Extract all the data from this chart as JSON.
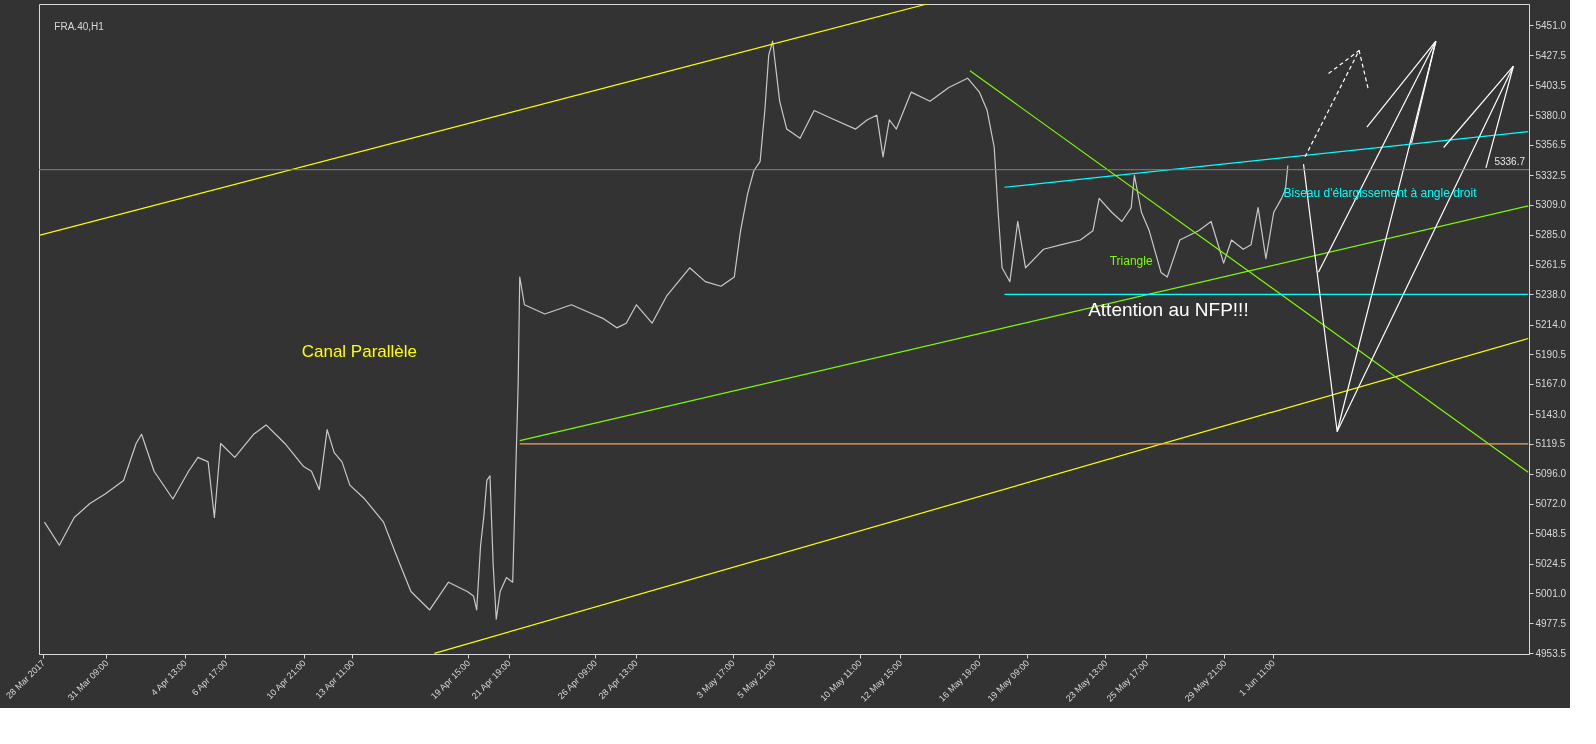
{
  "chart_data": {
    "type": "line",
    "title": "FRA.40,H1",
    "xlim": [
      "2017-03-27T19:00",
      "2017-06-15T02:00"
    ],
    "ylim": [
      4953,
      5468
    ],
    "xticks": [
      {
        "value": "2017-03-28T00:00",
        "label": "28 Mar 2017"
      },
      {
        "value": "2017-03-31T09:00",
        "label": "31 Mar 09:00"
      },
      {
        "value": "2017-04-04T13:00",
        "label": "4 Apr 13:00"
      },
      {
        "value": "2017-04-06T17:00",
        "label": "6 Apr 17:00"
      },
      {
        "value": "2017-04-10T21:00",
        "label": "10 Apr 21:00"
      },
      {
        "value": "2017-04-13T11:00",
        "label": "13 Apr 11:00"
      },
      {
        "value": "2017-04-19T15:00",
        "label": "19 Apr 15:00"
      },
      {
        "value": "2017-04-21T19:00",
        "label": "21 Apr 19:00"
      },
      {
        "value": "2017-04-26T09:00",
        "label": "26 Apr 09:00"
      },
      {
        "value": "2017-04-28T13:00",
        "label": "28 Apr 13:00"
      },
      {
        "value": "2017-05-03T17:00",
        "label": "3 May 17:00"
      },
      {
        "value": "2017-05-05T21:00",
        "label": "5 May 21:00"
      },
      {
        "value": "2017-05-10T11:00",
        "label": "10 May 11:00"
      },
      {
        "value": "2017-05-12T15:00",
        "label": "12 May 15:00"
      },
      {
        "value": "2017-05-16T19:00",
        "label": "16 May 19:00"
      },
      {
        "value": "2017-05-19T09:00",
        "label": "19 May 09:00"
      },
      {
        "value": "2017-05-23T13:00",
        "label": "23 May 13:00"
      },
      {
        "value": "2017-05-25T17:00",
        "label": "25 May 17:00"
      },
      {
        "value": "2017-05-29T21:00",
        "label": "29 May 21:00"
      },
      {
        "value": "2017-06-01T11:00",
        "label": "1 Jun 11:00"
      }
    ],
    "yticks": [
      {
        "value": 4953.5,
        "label": "4953.5"
      },
      {
        "value": 4977.5,
        "label": "4977.5"
      },
      {
        "value": 5001,
        "label": "5001.0"
      },
      {
        "value": 5024.5,
        "label": "5024.5"
      },
      {
        "value": 5048.5,
        "label": "5048.5"
      },
      {
        "value": 5072,
        "label": "5072.0"
      },
      {
        "value": 5096,
        "label": "5096.0"
      },
      {
        "value": 5119.5,
        "label": "5119.5"
      },
      {
        "value": 5143,
        "label": "5143.0"
      },
      {
        "value": 5167,
        "label": "5167.0"
      },
      {
        "value": 5190.5,
        "label": "5190.5"
      },
      {
        "value": 5214,
        "label": "5214.0"
      },
      {
        "value": 5238,
        "label": "5238.0"
      },
      {
        "value": 5261.5,
        "label": "5261.5"
      },
      {
        "value": 5285,
        "label": "5285.0"
      },
      {
        "value": 5309,
        "label": "5309.0"
      },
      {
        "value": 5332.5,
        "label": "5332.5"
      },
      {
        "value": 5356.5,
        "label": "5356.5"
      },
      {
        "value": 5380,
        "label": "5380.0"
      },
      {
        "value": 5403.5,
        "label": "5403.5"
      },
      {
        "value": 5427.5,
        "label": "5427.5"
      },
      {
        "value": 5451,
        "label": "5451.0"
      }
    ],
    "series": [
      {
        "color": "#c8c8c8",
        "x": [
          "2017-03-28T02:00",
          "2017-03-28T21:00",
          "2017-03-29T16:00",
          "2017-03-30T12:00",
          "2017-03-31T07:00",
          "2017-04-01T07:00",
          "2017-04-01T23:00",
          "2017-04-02T06:00",
          "2017-04-02T22:00",
          "2017-04-03T22:00",
          "2017-04-04T18:00",
          "2017-04-05T06:00",
          "2017-04-05T19:00",
          "2017-04-06T03:00",
          "2017-04-06T11:00",
          "2017-04-07T05:00",
          "2017-04-08T05:00",
          "2017-04-08T21:00",
          "2017-04-09T21:00",
          "2017-04-10T21:00",
          "2017-04-11T07:00",
          "2017-04-11T17:00",
          "2017-04-12T03:00",
          "2017-04-12T12:00",
          "2017-04-12T22:00",
          "2017-04-13T08:00",
          "2017-04-14T03:00",
          "2017-04-15T03:00",
          "2017-04-15T19:00",
          "2017-04-16T14:00",
          "2017-04-17T14:00",
          "2017-04-18T14:00",
          "2017-04-19T14:00",
          "2017-04-19T22:00",
          "2017-04-20T02:00",
          "2017-04-20T07:00",
          "2017-04-20T11:00",
          "2017-04-20T15:00",
          "2017-04-20T19:00",
          "2017-04-20T23:00",
          "2017-04-21T03:00",
          "2017-04-21T08:00",
          "2017-04-21T16:00",
          "2017-04-22T00:00",
          "2017-04-22T07:00",
          "2017-04-22T09:00",
          "2017-04-22T15:00",
          "2017-04-23T17:00",
          "2017-04-25T03:00",
          "2017-04-26T06:00",
          "2017-04-26T20:00",
          "2017-04-27T13:00",
          "2017-04-28T01:00",
          "2017-04-28T14:00",
          "2017-04-29T10:00",
          "2017-04-30T05:00",
          "2017-05-01T10:00",
          "2017-05-02T06:00",
          "2017-05-03T02:00",
          "2017-05-03T19:00",
          "2017-05-04T03:00",
          "2017-05-04T12:00",
          "2017-05-04T20:00",
          "2017-05-05T04:00",
          "2017-05-05T10:00",
          "2017-05-05T15:00",
          "2017-05-05T20:00",
          "2017-05-06T05:00",
          "2017-05-06T14:00",
          "2017-05-07T07:00",
          "2017-05-08T01:00",
          "2017-05-09T03:00",
          "2017-05-10T06:00",
          "2017-05-10T21:00",
          "2017-05-11T09:00",
          "2017-05-11T17:00",
          "2017-05-12T01:00",
          "2017-05-12T10:00",
          "2017-05-13T05:00",
          "2017-05-14T05:00",
          "2017-05-15T05:00",
          "2017-05-16T05:00",
          "2017-05-16T20:00",
          "2017-05-17T06:00",
          "2017-05-17T15:00",
          "2017-05-17T20:00",
          "2017-05-18T01:00",
          "2017-05-18T11:00",
          "2017-05-18T21:00",
          "2017-05-19T07:00",
          "2017-05-20T06:00",
          "2017-05-21T05:00",
          "2017-05-22T05:00",
          "2017-05-22T21:00",
          "2017-05-23T05:00",
          "2017-05-23T21:00",
          "2017-05-24T10:00",
          "2017-05-24T22:00",
          "2017-05-25T02:00",
          "2017-05-25T11:00",
          "2017-05-25T21:00",
          "2017-05-26T12:00",
          "2017-05-26T20:00",
          "2017-05-27T12:00",
          "2017-05-28T12:00",
          "2017-05-29T04:00",
          "2017-05-29T20:00",
          "2017-05-30T06:00",
          "2017-05-30T21:00",
          "2017-05-31T07:00",
          "2017-05-31T16:00",
          "2017-06-01T02:00",
          "2017-06-01T12:00",
          "2017-06-01T22:00",
          "2017-06-02T03:00",
          "2017-06-02T06:00"
        ],
        "values": [
          5057.5,
          5039.2,
          5061.2,
          5072.2,
          5079.5,
          5090.5,
          5119.8,
          5127.1,
          5097.8,
          5075.8,
          5097.8,
          5108.8,
          5105.2,
          5061.2,
          5119.8,
          5108.8,
          5127.1,
          5134.5,
          5119.8,
          5101.5,
          5097.8,
          5083.2,
          5130.8,
          5112.5,
          5105.2,
          5086.8,
          5075.8,
          5057.5,
          5031.9,
          5002.5,
          4987.9,
          5009.9,
          5002.5,
          4998.9,
          4987.9,
          5039.2,
          5061.2,
          5090.5,
          5094.2,
          5024.5,
          4980.6,
          5002.5,
          5013.6,
          5009.9,
          5167.4,
          5251.7,
          5229.7,
          5222.4,
          5229.7,
          5222.4,
          5218.7,
          5211.4,
          5215.1,
          5229.7,
          5215.1,
          5237.0,
          5259.0,
          5248.0,
          5244.4,
          5251.7,
          5288.3,
          5317.6,
          5335.9,
          5343.3,
          5383.6,
          5427.5,
          5438.5,
          5390.9,
          5368.9,
          5361.6,
          5383.6,
          5376.3,
          5368.9,
          5376.3,
          5379.9,
          5346.9,
          5376.3,
          5368.9,
          5398.2,
          5390.9,
          5401.9,
          5409.2,
          5398.2,
          5383.6,
          5354.3,
          5303.0,
          5259.0,
          5248.0,
          5295.7,
          5259.0,
          5273.7,
          5277.3,
          5281.0,
          5288.3,
          5314.0,
          5303.0,
          5295.7,
          5306.6,
          5332.3,
          5303.0,
          5288.3,
          5255.3,
          5251.7,
          5281.0,
          5288.3,
          5295.7,
          5262.7,
          5281.0,
          5273.7,
          5277.3,
          5306.6,
          5266.3,
          5303.0,
          5314.0,
          5321.3,
          5340.0
        ]
      },
      {
        "color": "#ffff00",
        "x": [
          "2017-03-27T19:00",
          "2017-05-14T01:00"
        ],
        "values": [
          5284.7,
          5468
        ]
      },
      {
        "color": "#ffff00",
        "x": [
          "2017-04-17T20:00",
          "2017-06-15T01:00"
        ],
        "values": [
          4953.5,
          5203
        ]
      },
      {
        "color": "#7cfc00",
        "x": [
          "2017-04-22T09:00",
          "2017-06-15T01:00"
        ],
        "values": [
          5122,
          5308
        ]
      },
      {
        "color": "#7cfc00",
        "x": [
          "2017-05-16T08:00",
          "2017-06-15T01:00"
        ],
        "values": [
          5415.1,
          5097
        ]
      },
      {
        "color": "#f4a460",
        "x": [
          "2017-04-22T09:00",
          "2017-06-15T01:00"
        ],
        "values": [
          5119.5,
          5119.5
        ]
      },
      {
        "color": "#00ffff",
        "x": [
          "2017-05-18T04:00",
          "2017-06-15T01:00"
        ],
        "values": [
          5238,
          5238
        ]
      },
      {
        "color": "#00ffff",
        "x": [
          "2017-05-18T04:00",
          "2017-06-15T01:00"
        ],
        "values": [
          5322.8,
          5366.9
        ]
      },
      {
        "color": "#ffffff",
        "x": [
          "2017-06-03T02:00",
          "2017-06-04T21:00",
          "2017-06-10T03:00"
        ],
        "values": [
          5341.1,
          5129.3,
          5438.5
        ]
      },
      {
        "color": "#ffffff",
        "x": [
          "2017-06-03T21:00",
          "2017-06-10T03:00"
        ],
        "values": [
          5255.4,
          5438.5
        ]
      },
      {
        "color": "#ffffff",
        "x": [
          "2017-06-06T11:00",
          "2017-06-10T03:00"
        ],
        "values": [
          5370.4,
          5438.5
        ]
      },
      {
        "color": "#ffffff",
        "x": [
          "2017-06-08T20:00",
          "2017-06-10T03:00"
        ],
        "values": [
          5357.9,
          5438.5
        ]
      },
      {
        "color": "#ffffff",
        "x": [
          "2017-06-04T21:00",
          "2017-06-14T06:00"
        ],
        "values": [
          5129.3,
          5418.7
        ]
      },
      {
        "color": "#ffffff",
        "x": [
          "2017-06-10T13:00",
          "2017-06-14T06:00"
        ],
        "values": [
          5354.3,
          5418.7
        ]
      },
      {
        "color": "#ffffff",
        "x": [
          "2017-06-12T19:00",
          "2017-06-14T06:00"
        ],
        "values": [
          5338.2,
          5418.7
        ]
      },
      {
        "color": "#ffffff",
        "line_style": "dashed",
        "x": [
          "2017-06-03T04:00",
          "2017-06-06T01:00",
          "2017-06-06T13:00"
        ],
        "values": [
          5346.9,
          5431.2,
          5399.7
        ]
      },
      {
        "color": "#ffffff",
        "line_style": "dashed",
        "x": [
          "2017-06-04T10:00",
          "2017-06-06T01:00"
        ],
        "values": [
          5412.9,
          5431.2
        ]
      }
    ],
    "ref_lines": [
      {
        "axis": "y",
        "value": 5336.7,
        "label": "5336.7",
        "color": "#808080"
      }
    ],
    "annotations": [
      "Canal Parallèle",
      "Triangle",
      "Biseau d'élargissement à angle droit",
      "Attention au NFP!!!"
    ]
  }
}
